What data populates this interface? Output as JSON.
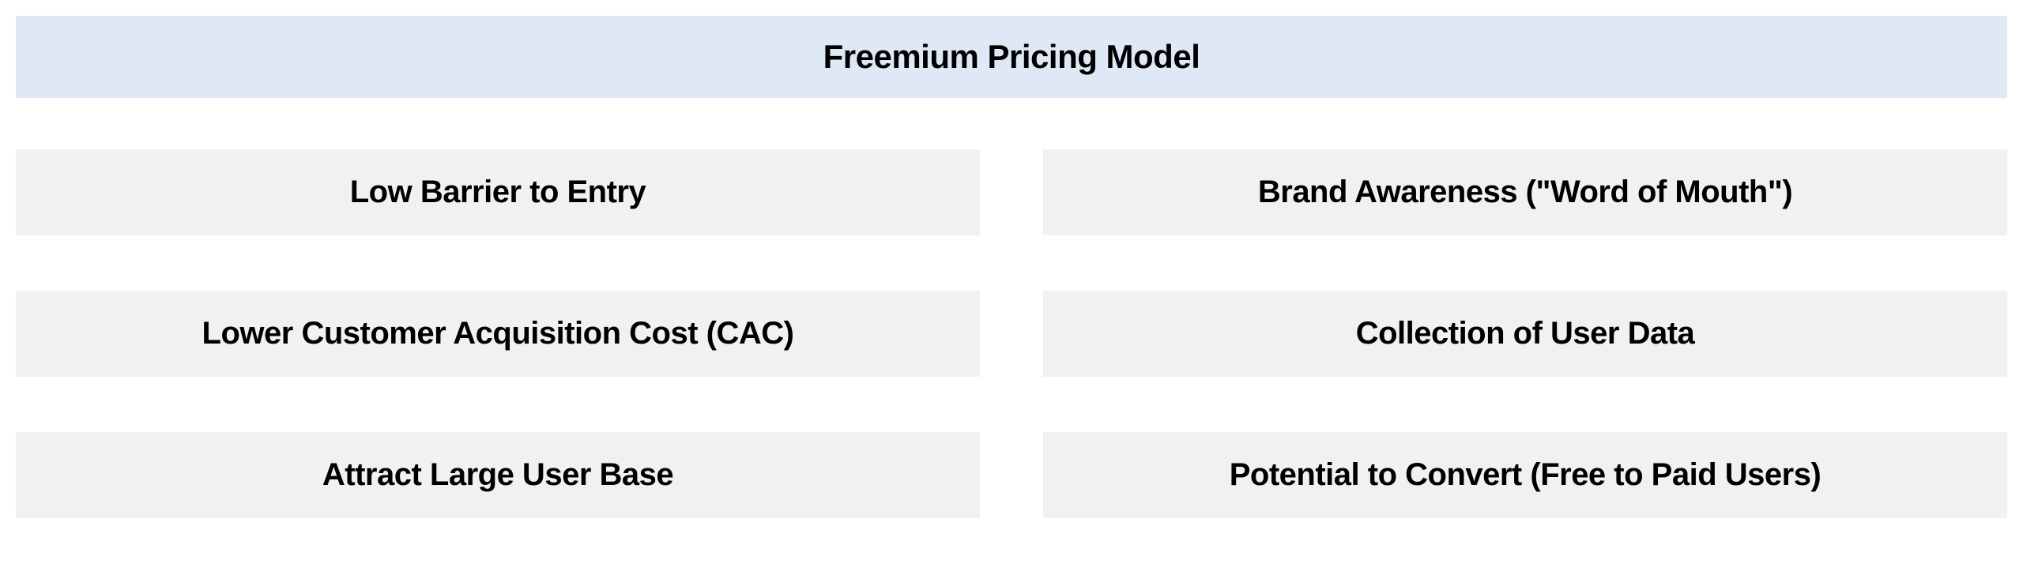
{
  "type": "infographic",
  "header": {
    "title": "Freemium Pricing Model",
    "background_color": "#dfe9f5",
    "text_color": "#000000",
    "font_weight": 800,
    "font_size": 42
  },
  "grid": {
    "columns": 2,
    "rows": 3,
    "column_gap": 80,
    "row_gap": 70,
    "items": [
      {
        "label": "Low Barrier to Entry"
      },
      {
        "label": "Brand Awareness (\"Word of Mouth\")"
      },
      {
        "label": "Lower Customer Acquisition Cost (CAC)"
      },
      {
        "label": "Collection of User Data"
      },
      {
        "label": "Attract Large User Base"
      },
      {
        "label": "Potential to Convert (Free to Paid Users)"
      }
    ],
    "item_style": {
      "background_color": "#f1f1f1",
      "text_color": "#000000",
      "font_weight": 800,
      "font_size": 40
    }
  },
  "background_color": "#ffffff"
}
